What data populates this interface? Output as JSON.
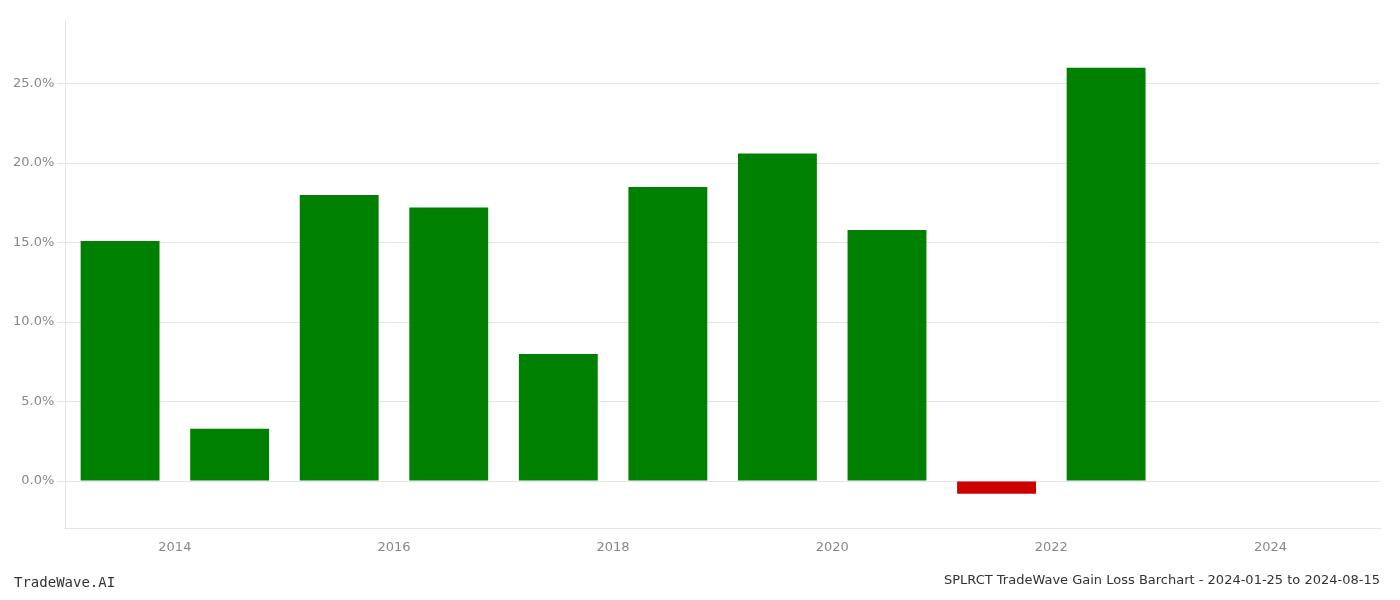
{
  "chart_data": {
    "type": "bar",
    "title": "SPLRCT TradeWave Gain Loss Barchart - 2024-01-25 to 2024-08-15",
    "annotations": [
      "TradeWave.AI"
    ],
    "x": [
      2013.5,
      2014.5,
      2015.5,
      2016.5,
      2017.5,
      2018.5,
      2019.5,
      2020.5,
      2021.5,
      2022.5
    ],
    "values": [
      0.151,
      0.033,
      0.18,
      0.172,
      0.08,
      0.185,
      0.206,
      0.158,
      -0.008,
      0.26
    ],
    "colors": [
      "#008000",
      "#008000",
      "#008000",
      "#008000",
      "#008000",
      "#008000",
      "#008000",
      "#008000",
      "#cc0000",
      "#008000"
    ],
    "xlim": [
      2013.0,
      2025.0
    ],
    "xticks": [
      2014,
      2016,
      2018,
      2020,
      2022,
      2024
    ],
    "ylim": [
      -0.03,
      0.29
    ],
    "yticks": [
      {
        "value": 0.0,
        "label": "0.0%"
      },
      {
        "value": 0.05,
        "label": "5.0%"
      },
      {
        "value": 0.1,
        "label": "10.0%"
      },
      {
        "value": 0.15,
        "label": "15.0%"
      },
      {
        "value": 0.2,
        "label": "20.0%"
      },
      {
        "value": 0.25,
        "label": "25.0%"
      }
    ],
    "grid": true
  }
}
